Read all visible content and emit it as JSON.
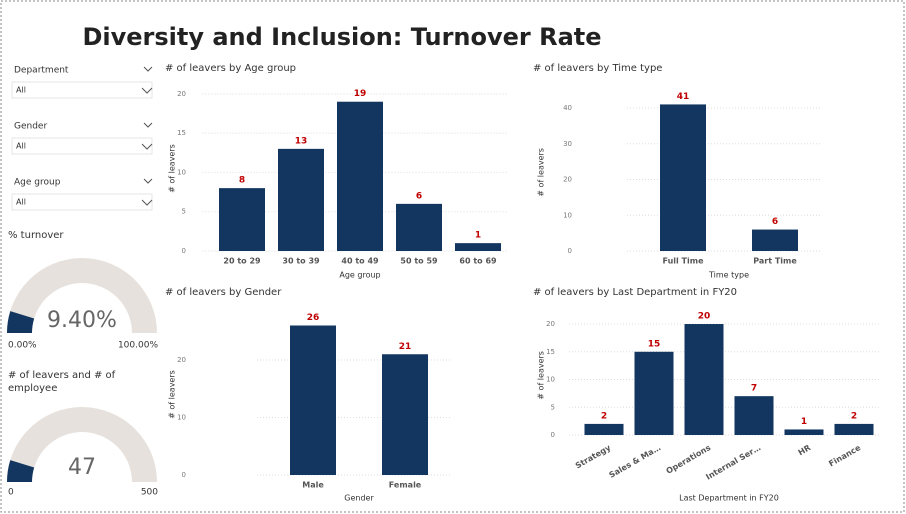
{
  "title": "Diversity and Inclusion: Turnover Rate",
  "slicers": [
    {
      "label": "Department",
      "value": "All"
    },
    {
      "label": "Gender",
      "value": "All"
    },
    {
      "label": "Age group",
      "value": "All"
    }
  ],
  "chart_data": [
    {
      "type": "bar",
      "title": "# of leavers by Age group",
      "x_label": "Age group",
      "y_label": "# of leavers",
      "categories": [
        "20 to 29",
        "30 to 39",
        "40 to 49",
        "50 to 59",
        "60 to 69"
      ],
      "values": [
        8,
        13,
        19,
        6,
        1
      ],
      "color": "#12365f",
      "label_color": "#c00000",
      "ylim": [
        0,
        21
      ],
      "yticks": [
        0,
        5,
        10,
        15,
        20
      ],
      "grid": true
    },
    {
      "type": "bar",
      "title": "# of leavers by Time type",
      "x_label": "Time type",
      "y_label": "# of leavers",
      "categories": [
        "Full Time",
        "Part Time"
      ],
      "values": [
        41,
        6
      ],
      "color": "#12365f",
      "label_color": "#c00000",
      "ylim": [
        0,
        44
      ],
      "yticks": [
        0,
        10,
        20,
        30,
        40
      ],
      "grid": true
    },
    {
      "type": "bar",
      "title": "# of leavers by Gender",
      "x_label": "Gender",
      "y_label": "# of leavers",
      "categories": [
        "Male",
        "Female"
      ],
      "values": [
        26,
        21
      ],
      "color": "#12365f",
      "label_color": "#c00000",
      "ylim": [
        0,
        28
      ],
      "yticks": [
        0,
        10,
        20
      ],
      "grid": true
    },
    {
      "type": "bar",
      "title": "# of leavers by Last Department in FY20",
      "x_label": "Last Department in FY20",
      "y_label": "# of leavers",
      "categories": [
        "Strategy",
        "Sales & Ma…",
        "Operations",
        "Internal Ser…",
        "HR",
        "Finance"
      ],
      "values": [
        2,
        15,
        20,
        7,
        1,
        2
      ],
      "color": "#12365f",
      "label_color": "#c00000",
      "ylim": [
        0,
        21.5
      ],
      "yticks": [
        0,
        5,
        10,
        15,
        20
      ],
      "grid": true
    },
    {
      "type": "gauge",
      "title": "% turnover",
      "values": [
        9.4
      ],
      "value_labels": [
        "9.40%"
      ],
      "ylim": [
        0,
        100
      ],
      "yticks": [
        {
          "value": 0,
          "label": "0.00%"
        },
        {
          "value": 100,
          "label": "100.00%"
        }
      ],
      "color": "#12365f",
      "track_color": "#e6e1dc"
    },
    {
      "type": "gauge",
      "title": "# of leavers and # of employee",
      "values": [
        47
      ],
      "ylim": [
        0,
        500
      ],
      "yticks": [
        0,
        500
      ],
      "color": "#12365f",
      "track_color": "#e6e1dc"
    }
  ]
}
